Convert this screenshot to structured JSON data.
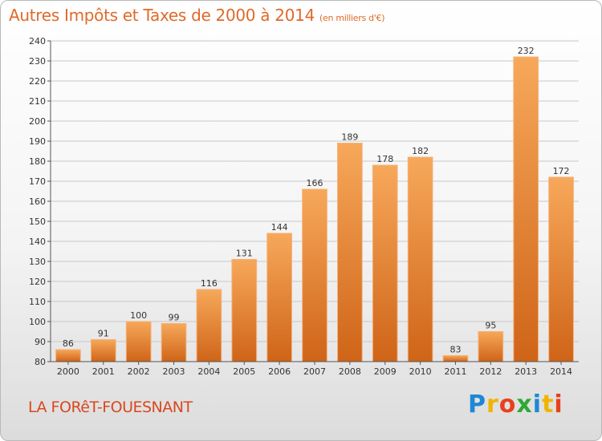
{
  "chart_data": {
    "type": "bar",
    "title": "Autres Impôts et Taxes de 2000 à 2014",
    "subtitle": "(en milliers d'€)",
    "categories": [
      "2000",
      "2001",
      "2002",
      "2003",
      "2004",
      "2005",
      "2006",
      "2007",
      "2008",
      "2009",
      "2010",
      "2011",
      "2012",
      "2013",
      "2014"
    ],
    "values": [
      86,
      91,
      100,
      99,
      116,
      131,
      144,
      166,
      189,
      178,
      182,
      83,
      95,
      232,
      172
    ],
    "ylim": [
      80,
      240
    ],
    "yticks": [
      80,
      90,
      100,
      110,
      120,
      130,
      140,
      150,
      160,
      170,
      180,
      190,
      200,
      210,
      220,
      230,
      240
    ],
    "grid": true,
    "bar_color": "#f08a3a"
  },
  "footer": {
    "commune": "LA FORêT-FOUESNANT",
    "logo_letters": [
      "P",
      "r",
      "o",
      "x",
      "i",
      "t",
      "i"
    ],
    "logo_colors": [
      "#1e88d4",
      "#f0b400",
      "#e8401c",
      "#2ea836",
      "#1e88d4",
      "#f0b400",
      "#e8401c"
    ]
  }
}
